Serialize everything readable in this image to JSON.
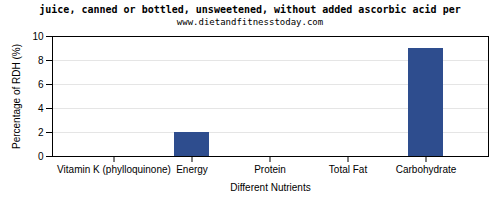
{
  "chart_data": {
    "type": "bar",
    "title": "juice, canned or bottled, unsweetened, without added ascorbic acid per",
    "subtitle": "www.dietandfitnesstoday.com",
    "x_label": "Different Nutrients",
    "y_label": "Percentage of RDH (%)",
    "categories": [
      "Vitamin K (phylloquinone)",
      "Energy",
      "Protein",
      "Total Fat",
      "Carbohydrate"
    ],
    "values": [
      0,
      2,
      0,
      0,
      9
    ],
    "color": "#2e4d8e",
    "ylim": [
      0,
      10
    ],
    "yticks": [
      0,
      2,
      4,
      6,
      8,
      10
    ],
    "grid": true
  }
}
